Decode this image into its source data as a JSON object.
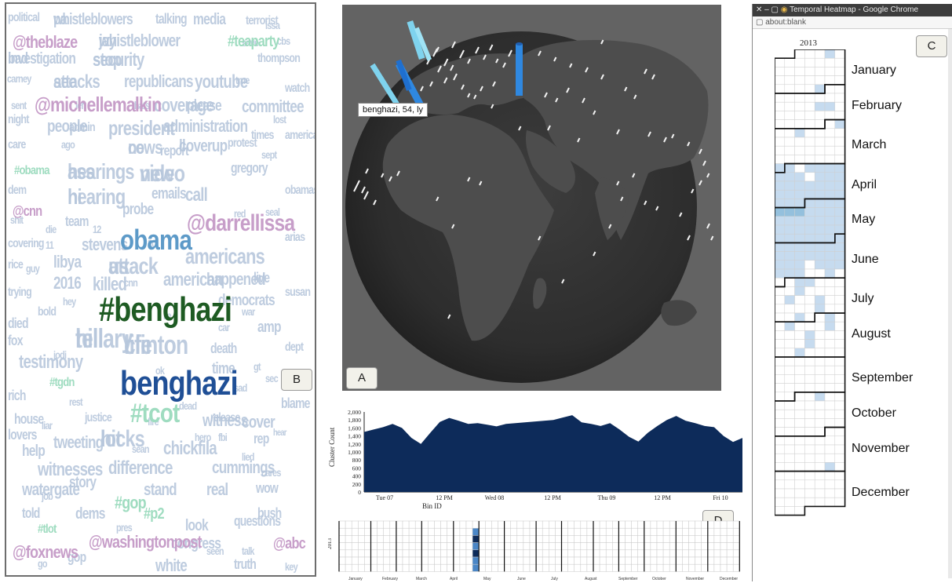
{
  "panel_labels": {
    "a": "A",
    "b": "B",
    "c": "C",
    "d": "D"
  },
  "word_cloud": {
    "main_words": [
      {
        "text": "#benghazi",
        "color": "#1e5b23"
      },
      {
        "text": "benghazi",
        "color": "#1f4f96"
      },
      {
        "text": "obama",
        "color": "#5d9ac8"
      },
      {
        "text": "@darrellissa",
        "color": "#c79ec9"
      },
      {
        "text": "@michellemalkin",
        "color": "#c79ec9"
      },
      {
        "text": "@theblaze",
        "color": "#c79ec9"
      },
      {
        "text": "@washingtonpost",
        "color": "#c79ec9"
      },
      {
        "text": "@foxnews",
        "color": "#c79ec9"
      },
      {
        "text": "@cnn",
        "color": "#c79ec9"
      },
      {
        "text": "@abc",
        "color": "#c79ec9"
      },
      {
        "text": "#teaparty",
        "color": "#9fdcc0"
      },
      {
        "text": "#tcot",
        "color": "#9fdcc0"
      },
      {
        "text": "#gop",
        "color": "#9fdcc0"
      },
      {
        "text": "#obama",
        "color": "#9fdcc0"
      },
      {
        "text": "#tgdn",
        "color": "#9fdcc0"
      },
      {
        "text": "#p2",
        "color": "#9fdcc0"
      },
      {
        "text": "#tlot",
        "color": "#9fdcc0"
      },
      {
        "text": "hearings",
        "color": "#b7c7dc"
      },
      {
        "text": "hearing",
        "color": "#b7c7dc"
      },
      {
        "text": "attack",
        "color": "#b7c7dc"
      },
      {
        "text": "hillary",
        "color": "#b7c7dc"
      },
      {
        "text": "clinton",
        "color": "#b7c7dc"
      },
      {
        "text": "hicks",
        "color": "#b7c7dc"
      },
      {
        "text": "video",
        "color": "#b7c7dc"
      },
      {
        "text": "news",
        "color": "#b7c7dc"
      },
      {
        "text": "coverup",
        "color": "#b7c7dc"
      },
      {
        "text": "whistleblowers",
        "color": "#b7c7dc"
      },
      {
        "text": "whistleblower",
        "color": "#b7c7dc"
      },
      {
        "text": "investigation",
        "color": "#b7c7dc"
      },
      {
        "text": "security",
        "color": "#b7c7dc"
      },
      {
        "text": "attacks",
        "color": "#b7c7dc"
      },
      {
        "text": "republicans",
        "color": "#b7c7dc"
      },
      {
        "text": "youtube",
        "color": "#b7c7dc"
      },
      {
        "text": "coverage",
        "color": "#b7c7dc"
      },
      {
        "text": "people",
        "color": "#b7c7dc"
      },
      {
        "text": "president",
        "color": "#b7c7dc"
      },
      {
        "text": "administration",
        "color": "#b7c7dc"
      },
      {
        "text": "americans",
        "color": "#b7c7dc"
      },
      {
        "text": "witnesses",
        "color": "#b7c7dc"
      },
      {
        "text": "watergate",
        "color": "#b7c7dc"
      },
      {
        "text": "cummings",
        "color": "#b7c7dc"
      },
      {
        "text": "difference",
        "color": "#b7c7dc"
      },
      {
        "text": "testimony",
        "color": "#b7c7dc"
      },
      {
        "text": "democrats",
        "color": "#b7c7dc"
      },
      {
        "text": "committee",
        "color": "#b7c7dc"
      },
      {
        "text": "gregory",
        "color": "#b7c7dc"
      },
      {
        "text": "tweeting",
        "color": "#b7c7dc"
      },
      {
        "text": "chickfila",
        "color": "#b7c7dc"
      },
      {
        "text": "house",
        "color": "#b7c7dc"
      },
      {
        "text": "white",
        "color": "#b7c7dc"
      },
      {
        "text": "truth",
        "color": "#b7c7dc"
      },
      {
        "text": "political",
        "color": "#b7c7dc"
      },
      {
        "text": "media",
        "color": "#b7c7dc"
      },
      {
        "text": "talking",
        "color": "#b7c7dc"
      },
      {
        "text": "terrorist",
        "color": "#b7c7dc"
      },
      {
        "text": "thompson",
        "color": "#b7c7dc"
      },
      {
        "text": "carney",
        "color": "#b7c7dc"
      },
      {
        "text": "please",
        "color": "#b7c7dc"
      },
      {
        "text": "probe",
        "color": "#b7c7dc"
      },
      {
        "text": "emails",
        "color": "#b7c7dc"
      },
      {
        "text": "report",
        "color": "#b7c7dc"
      },
      {
        "text": "admin",
        "color": "#b7c7dc"
      },
      {
        "text": "team",
        "color": "#b7c7dc"
      },
      {
        "text": "call",
        "color": "#b7c7dc"
      },
      {
        "text": "stevens",
        "color": "#b7c7dc"
      },
      {
        "text": "libya",
        "color": "#b7c7dc"
      },
      {
        "text": "2016",
        "color": "#b7c7dc"
      },
      {
        "text": "killed",
        "color": "#b7c7dc"
      },
      {
        "text": "american",
        "color": "#b7c7dc"
      },
      {
        "text": "happened",
        "color": "#b7c7dc"
      },
      {
        "text": "live",
        "color": "#b7c7dc"
      },
      {
        "text": "amp",
        "color": "#b7c7dc"
      },
      {
        "text": "death",
        "color": "#b7c7dc"
      },
      {
        "text": "time",
        "color": "#b7c7dc"
      },
      {
        "text": "witness",
        "color": "#b7c7dc"
      },
      {
        "text": "cover",
        "color": "#b7c7dc"
      },
      {
        "text": "help",
        "color": "#b7c7dc"
      },
      {
        "text": "rep",
        "color": "#b7c7dc"
      },
      {
        "text": "story",
        "color": "#b7c7dc"
      },
      {
        "text": "stand",
        "color": "#b7c7dc"
      },
      {
        "text": "real",
        "color": "#b7c7dc"
      },
      {
        "text": "wow",
        "color": "#b7c7dc"
      },
      {
        "text": "told",
        "color": "#b7c7dc"
      },
      {
        "text": "dems",
        "color": "#b7c7dc"
      },
      {
        "text": "look",
        "color": "#b7c7dc"
      },
      {
        "text": "questions",
        "color": "#b7c7dc"
      },
      {
        "text": "congress",
        "color": "#b7c7dc"
      },
      {
        "text": "bush",
        "color": "#b7c7dc"
      },
      {
        "text": "gop",
        "color": "#b7c7dc"
      },
      {
        "text": "died",
        "color": "#b7c7dc"
      },
      {
        "text": "fox",
        "color": "#b7c7dc"
      },
      {
        "text": "rich",
        "color": "#b7c7dc"
      },
      {
        "text": "lovers",
        "color": "#b7c7dc"
      },
      {
        "text": "blame",
        "color": "#b7c7dc"
      },
      {
        "text": "dept",
        "color": "#b7c7dc"
      },
      {
        "text": "susan",
        "color": "#b7c7dc"
      },
      {
        "text": "arias",
        "color": "#b7c7dc"
      },
      {
        "text": "obamas",
        "color": "#b7c7dc"
      },
      {
        "text": "america",
        "color": "#b7c7dc"
      },
      {
        "text": "watch",
        "color": "#b7c7dc"
      },
      {
        "text": "release",
        "color": "#b7c7dc"
      },
      {
        "text": "justice",
        "color": "#b7c7dc"
      },
      {
        "text": "night",
        "color": "#b7c7dc"
      },
      {
        "text": "care",
        "color": "#b7c7dc"
      },
      {
        "text": "dem",
        "color": "#b7c7dc"
      },
      {
        "text": "covering",
        "color": "#b7c7dc"
      },
      {
        "text": "rice",
        "color": "#b7c7dc"
      },
      {
        "text": "trying",
        "color": "#b7c7dc"
      },
      {
        "text": "bold",
        "color": "#b7c7dc"
      },
      {
        "text": "times",
        "color": "#b7c7dc"
      },
      {
        "text": "protest",
        "color": "#b7c7dc"
      },
      {
        "text": "lost",
        "color": "#b7c7dc"
      },
      {
        "text": "issa",
        "color": "#b7c7dc"
      },
      {
        "text": "cbs",
        "color": "#b7c7dc"
      },
      {
        "text": "save",
        "color": "#b7c7dc"
      },
      {
        "text": "true",
        "color": "#b7c7dc"
      },
      {
        "text": "sept",
        "color": "#b7c7dc"
      },
      {
        "text": "seal",
        "color": "#b7c7dc"
      },
      {
        "text": "red",
        "color": "#b7c7dc"
      },
      {
        "text": "sad",
        "color": "#b7c7dc"
      },
      {
        "text": "dead",
        "color": "#b7c7dc"
      },
      {
        "text": "fbi",
        "color": "#b7c7dc"
      },
      {
        "text": "lied",
        "color": "#b7c7dc"
      },
      {
        "text": "job",
        "color": "#b7c7dc"
      },
      {
        "text": "talk",
        "color": "#b7c7dc"
      },
      {
        "text": "key",
        "color": "#b7c7dc"
      },
      {
        "text": "go",
        "color": "#b7c7dc"
      },
      {
        "text": "ok",
        "color": "#b7c7dc"
      },
      {
        "text": "lie",
        "color": "#b7c7dc"
      },
      {
        "text": "gt",
        "color": "#b7c7dc"
      },
      {
        "text": "wh",
        "color": "#b7c7dc"
      },
      {
        "text": "read",
        "color": "#b7c7dc"
      },
      {
        "text": "hear",
        "color": "#b7c7dc"
      },
      {
        "text": "thats",
        "color": "#b7c7dc"
      },
      {
        "text": "left",
        "color": "#b7c7dc"
      },
      {
        "text": "sent",
        "color": "#b7c7dc"
      },
      {
        "text": "ago",
        "color": "#b7c7dc"
      },
      {
        "text": "shit",
        "color": "#b7c7dc"
      },
      {
        "text": "die",
        "color": "#b7c7dc"
      },
      {
        "text": "11",
        "color": "#b7c7dc"
      },
      {
        "text": "12",
        "color": "#b7c7dc"
      },
      {
        "text": "20",
        "color": "#b7c7dc"
      },
      {
        "text": "guy",
        "color": "#b7c7dc"
      },
      {
        "text": "cnn",
        "color": "#b7c7dc"
      },
      {
        "text": "hey",
        "color": "#b7c7dc"
      },
      {
        "text": "war",
        "color": "#b7c7dc"
      },
      {
        "text": "car",
        "color": "#b7c7dc"
      },
      {
        "text": "sec",
        "color": "#b7c7dc"
      },
      {
        "text": "jodi",
        "color": "#b7c7dc"
      },
      {
        "text": "rest",
        "color": "#b7c7dc"
      },
      {
        "text": "fire",
        "color": "#b7c7dc"
      },
      {
        "text": "hero",
        "color": "#b7c7dc"
      },
      {
        "text": "liar",
        "color": "#b7c7dc"
      },
      {
        "text": "sean",
        "color": "#b7c7dc"
      },
      {
        "text": "cares",
        "color": "#b7c7dc"
      },
      {
        "text": "pres",
        "color": "#b7c7dc"
      },
      {
        "text": "seen",
        "color": "#b7c7dc"
      },
      {
        "text": "ass",
        "color": "#b7c7dc"
      },
      {
        "text": "hi",
        "color": "#b7c7dc"
      },
      {
        "text": "us",
        "color": "#b7c7dc"
      },
      {
        "text": "tell",
        "color": "#b7c7dc"
      },
      {
        "text": "life",
        "color": "#b7c7dc"
      },
      {
        "text": "lot",
        "color": "#b7c7dc"
      },
      {
        "text": "new",
        "color": "#b7c7dc"
      },
      {
        "text": "co",
        "color": "#b7c7dc"
      },
      {
        "text": "ll",
        "color": "#b7c7dc"
      },
      {
        "text": "pa",
        "color": "#b7c7dc"
      },
      {
        "text": "jay",
        "color": "#b7c7dc"
      },
      {
        "text": "bad",
        "color": "#b7c7dc"
      },
      {
        "text": "stop",
        "color": "#b7c7dc"
      },
      {
        "text": "see",
        "color": "#b7c7dc"
      }
    ]
  },
  "globe": {
    "tooltip": "benghazi, 54, ly",
    "land_color": "#4c4c4c",
    "ocean_color": "#2b2b2b",
    "bar_color": "#2f88e0",
    "bar_color_light": "#7fd3ee"
  },
  "chart_data": {
    "type": "area",
    "ylabel": "Cluster Count",
    "xlabel": "Bin ID",
    "ylim": [
      0,
      2000
    ],
    "yticks": [
      "2,000",
      "1,800",
      "1,600",
      "1,400",
      "1,200",
      "1,000",
      "800",
      "600",
      "400",
      "200",
      "0"
    ],
    "xticks": [
      "Tue 07",
      "12 PM",
      "Wed 08",
      "12 PM",
      "Thu 09",
      "12 PM",
      "Fri 10"
    ],
    "fill_color": "#0d2b5a",
    "x": [
      0,
      1,
      2,
      3,
      4,
      5,
      6,
      7,
      8,
      9,
      10,
      11,
      12,
      13,
      14,
      15,
      16,
      17,
      18,
      19,
      20,
      21,
      22,
      23,
      24,
      25,
      26,
      27,
      28,
      29,
      30,
      31,
      32,
      33,
      34,
      35,
      36,
      37,
      38,
      39,
      40
    ],
    "values": [
      1500,
      1560,
      1620,
      1700,
      1600,
      1350,
      1200,
      1480,
      1750,
      1850,
      1780,
      1700,
      1720,
      1680,
      1640,
      1700,
      1720,
      1740,
      1760,
      1780,
      1800,
      1860,
      1920,
      1740,
      1700,
      1650,
      1720,
      1560,
      1380,
      1260,
      1480,
      1650,
      1800,
      1900,
      1780,
      1720,
      1650,
      1620,
      1400,
      1250,
      1350
    ]
  },
  "bottom_calendar": {
    "year": "2013",
    "months": [
      "January",
      "February",
      "March",
      "April",
      "May",
      "June",
      "July",
      "August",
      "September",
      "October",
      "November",
      "December"
    ]
  },
  "browser": {
    "title": "Temporal Heatmap - Google Chrome",
    "url": "about:blank",
    "year": "2013",
    "months": [
      "January",
      "February",
      "March",
      "April",
      "May",
      "June",
      "July",
      "August",
      "September",
      "October",
      "November",
      "December"
    ],
    "cell_color": "#c6dbef",
    "cell_color_dark": "#94c0dd"
  }
}
